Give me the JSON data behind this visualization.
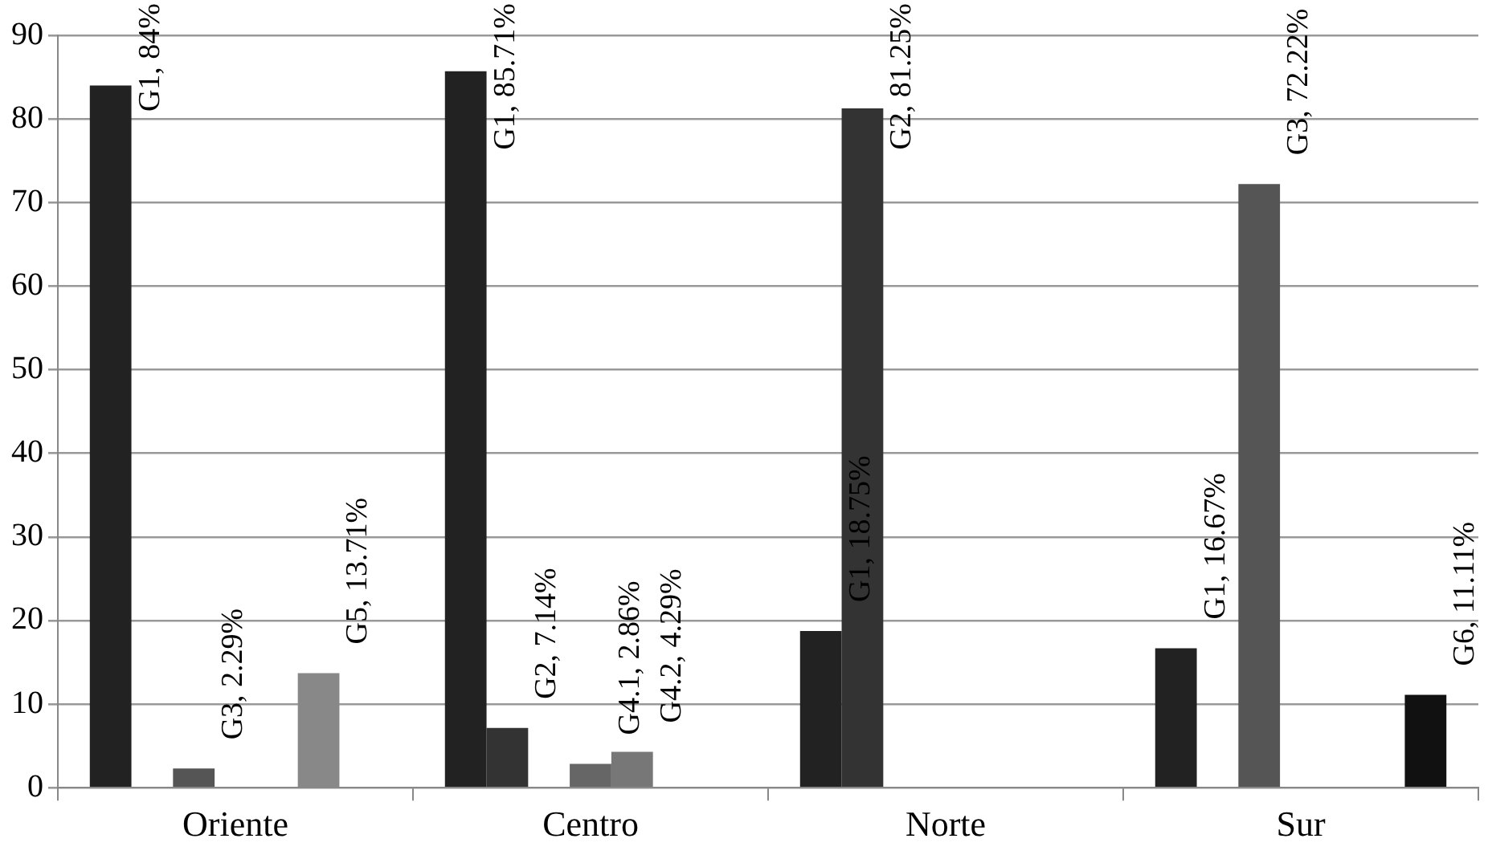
{
  "chart_data": {
    "type": "bar",
    "categories": [
      "Oriente",
      "Centro",
      "Norte",
      "Sur"
    ],
    "series": [
      {
        "color": "#222222",
        "values": [
          84,
          85.71,
          18.75,
          16.67
        ],
        "value_labels": [
          "G1, 84%",
          "G1, 85.71%",
          "G1, 18.75%",
          "G1, 16.67%"
        ]
      },
      {
        "color": "#333333",
        "values": [
          null,
          7.14,
          81.25,
          null
        ],
        "value_labels": [
          null,
          "G2, 7.14%",
          "G2, 81.25%",
          null
        ]
      },
      {
        "color": "#555555",
        "values": [
          2.29,
          null,
          null,
          72.22
        ],
        "value_labels": [
          "G3, 2.29%",
          null,
          null,
          "G3, 72.22%"
        ]
      },
      {
        "color": "#666666",
        "values": [
          null,
          2.86,
          null,
          null
        ],
        "value_labels": [
          null,
          "G4.1, 2.86%",
          null,
          null
        ]
      },
      {
        "color": "#777777",
        "values": [
          null,
          4.29,
          null,
          null
        ],
        "value_labels": [
          null,
          "G4.2, 4.29%",
          null,
          null
        ]
      },
      {
        "color": "#888888",
        "values": [
          13.71,
          null,
          null,
          null
        ],
        "value_labels": [
          "G5, 13.71%",
          null,
          null,
          null
        ]
      },
      {
        "color": "#111111",
        "values": [
          null,
          null,
          null,
          11.11
        ],
        "value_labels": [
          null,
          null,
          null,
          "G6, 11.11%"
        ]
      }
    ],
    "ylim": [
      0,
      90
    ],
    "yticks": [
      0,
      10,
      20,
      30,
      40,
      50,
      60,
      70,
      80,
      90
    ],
    "grid": "y",
    "legend": false
  }
}
